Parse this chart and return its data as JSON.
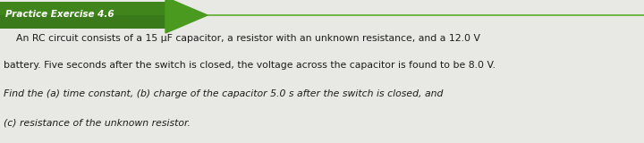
{
  "title": "Practice Exercise 4.6",
  "body_line1": "    An RC circuit consists of a 15 μF capacitor, a resistor with an unknown resistance, and a 12.0 V",
  "body_line2": "battery. Five seconds after the switch is closed, the voltage across the capacitor is found to be 8.0 V.",
  "body_line3": "Find the (a) time constant, (b) charge of the capacitor 5.0 s after the switch is closed, and",
  "body_line4": "(c) resistance of the unknown resistor.",
  "bg_color": "#e8e8e4",
  "arrow_body_color": "#3a7a1a",
  "arrow_head_color": "#4a9a20",
  "arrow_line_color": "#5aaa28",
  "text_color_white": "#ffffff",
  "text_color_body": "#1c1c1c",
  "title_font_size": 7.5,
  "body_font_size": 7.8
}
